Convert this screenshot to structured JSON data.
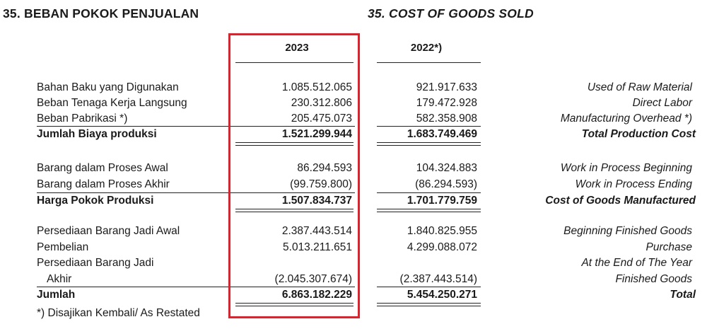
{
  "header": {
    "title_id": "35.  BEBAN POKOK PENJUALAN",
    "title_en": "35.  COST OF GOODS SOLD"
  },
  "columns": {
    "year_2023": "2023",
    "year_2022": "2022*)"
  },
  "rows": [
    {
      "label": "Bahan Baku yang Digunakan",
      "v2023": "1.085.512.065",
      "v2022": "921.917.633",
      "en": "Used of  Raw Material"
    },
    {
      "label": "Beban Tenaga Kerja Langsung",
      "v2023": "230.312.806",
      "v2022": "179.472.928",
      "en": "Direct Labor"
    },
    {
      "label": "Beban Pabrikasi *)",
      "v2023": "205.475.073",
      "v2022": "582.358.908",
      "en": "Manufacturing Overhead *)"
    },
    {
      "label": "Jumlah Biaya produksi",
      "v2023": "1.521.299.944",
      "v2022": "1.683.749.469",
      "en": "Total Production Cost"
    },
    {
      "label": "Barang dalam Proses Awal",
      "v2023": "86.294.593",
      "v2022": "104.324.883",
      "en": "Work in Process Beginning"
    },
    {
      "label": "Barang dalam Proses Akhir",
      "v2023": "(99.759.800)",
      "v2022": "(86.294.593)",
      "en": "Work in Process Ending"
    },
    {
      "label": "Harga Pokok Produksi",
      "v2023": "1.507.834.737",
      "v2022": "1.701.779.759",
      "en": "Cost of Goods Manufactured"
    },
    {
      "label": "Persediaan Barang Jadi Awal",
      "v2023": "2.387.443.514",
      "v2022": "1.840.825.955",
      "en": "Beginning Finished Goods"
    },
    {
      "label": "Pembelian",
      "v2023": "5.013.211.651",
      "v2022": "4.299.088.072",
      "en": "Purchase"
    },
    {
      "label": "Persediaan Barang Jadi",
      "v2023": "",
      "v2022": "",
      "en": "At the End of The Year"
    },
    {
      "label": "Akhir",
      "v2023": "(2.045.307.674)",
      "v2022": "(2.387.443.514)",
      "en": "Finished Goods"
    },
    {
      "label": "Jumlah",
      "v2023": "6.863.182.229",
      "v2022": "5.454.250.271",
      "en": "Total"
    }
  ],
  "footnote": "*) Disajikan Kembali/ As Restated",
  "highlight_color": "#e0202a"
}
